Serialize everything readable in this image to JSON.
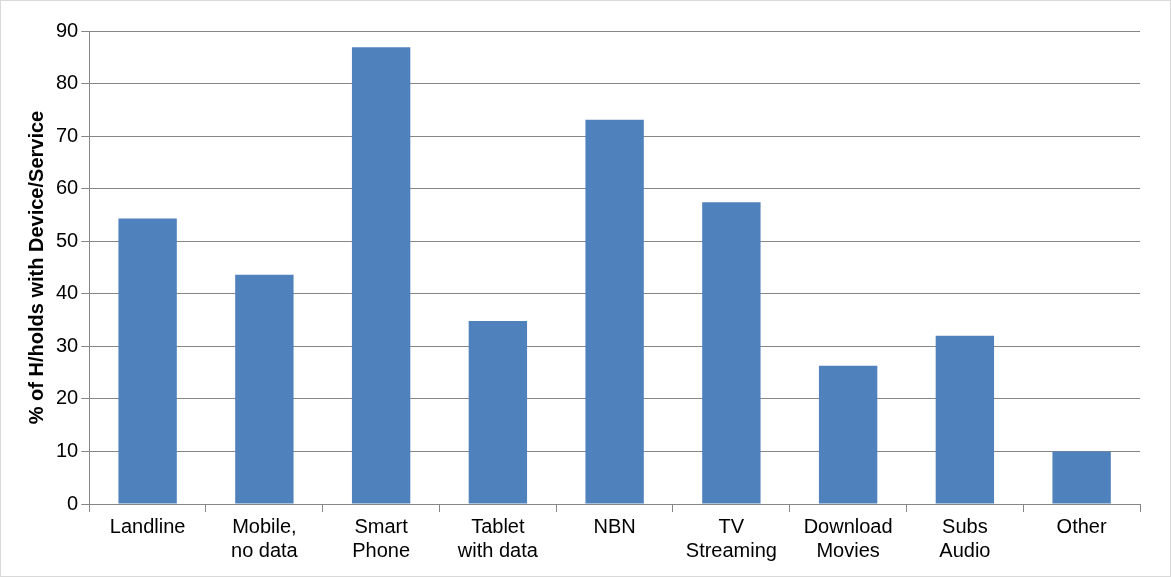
{
  "chart_data": {
    "type": "bar",
    "ylabel": "% of H/holds with Device/Service",
    "categories": [
      "Landline",
      "Mobile, no data",
      "Smart Phone",
      "Tablet with data",
      "NBN",
      "TV Streaming",
      "Download Movies",
      "Subs Audio",
      "Other"
    ],
    "values": [
      54.3,
      43.6,
      86.9,
      34.8,
      73.1,
      57.4,
      26.3,
      32.0,
      10.0
    ],
    "color": "#4f81bd",
    "ylim": [
      0,
      90
    ],
    "yticks": [
      0,
      10,
      20,
      30,
      40,
      50,
      60,
      70,
      80,
      90
    ],
    "grid": "y",
    "legend": false
  }
}
